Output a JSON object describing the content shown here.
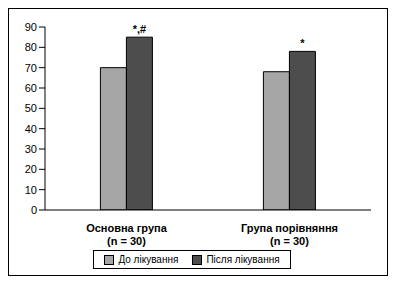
{
  "chart_data": {
    "type": "bar",
    "categories": [
      "Основна група (n = 30)",
      "Група порівняння (n = 30)"
    ],
    "series": [
      {
        "name": "До лікування",
        "color": "#a6a6a6",
        "values": [
          70,
          68
        ]
      },
      {
        "name": "Після лікування",
        "color": "#4d4d4d",
        "values": [
          85,
          78
        ],
        "annotations": [
          "*,#",
          "*"
        ]
      }
    ],
    "ylim": [
      0,
      90
    ],
    "yticks": [
      0,
      10,
      20,
      30,
      40,
      50,
      60,
      70,
      80,
      90
    ],
    "grid": false,
    "legend": "bottom"
  }
}
